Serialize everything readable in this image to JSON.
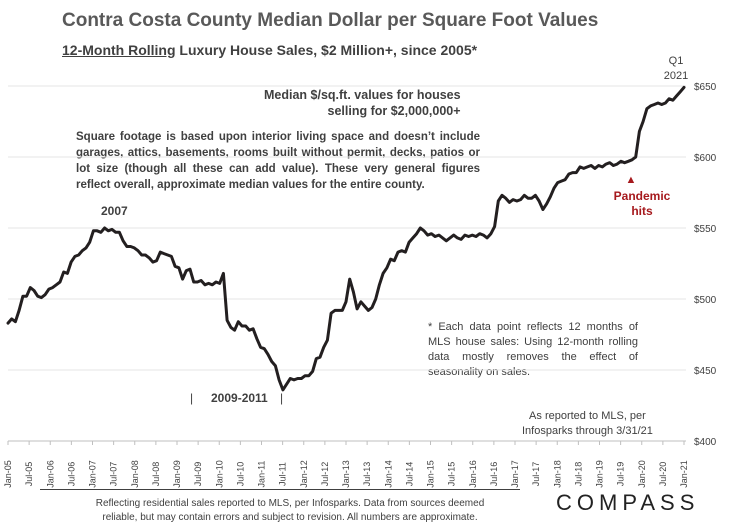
{
  "header": {
    "title": "Contra Costa County Median Dollar per Square Foot Values",
    "subtitle_underlined": "12-Month Rolling",
    "subtitle_rest": " Luxury House Sales, $2 Million+, since 2005*"
  },
  "chart_data": {
    "type": "line",
    "title": "Contra Costa County Median Dollar per Square Foot Values",
    "series_name": "Median $/sq.ft. values for houses selling for $2,000,000+",
    "ylim": [
      400,
      650
    ],
    "y_ticks": [
      400,
      450,
      500,
      550,
      600,
      650
    ],
    "y_tick_labels": [
      "$400",
      "$450",
      "$500",
      "$550",
      "$600",
      "$650"
    ],
    "x_labels": [
      "Jan-05",
      "Jul-05",
      "Jan-06",
      "Jul-06",
      "Jan-07",
      "Jul-07",
      "Jan-08",
      "Jul-08",
      "Jan-09",
      "Jul-09",
      "Jan-10",
      "Jul-10",
      "Jan-11",
      "Jul-11",
      "Jan-12",
      "Jul-12",
      "Jan-13",
      "Jul-13",
      "Jan-14",
      "Jul-14",
      "Jan-15",
      "Jul-15",
      "Jan-16",
      "Jul-16",
      "Jan-17",
      "Jul-17",
      "Jan-18",
      "Jul-18",
      "Jan-19",
      "Jul-19",
      "Jan-20",
      "Jul-20",
      "Jan-21"
    ],
    "values": [
      483,
      486,
      484,
      492,
      502,
      502,
      508,
      506,
      502,
      501,
      503,
      507,
      508,
      510,
      512,
      519,
      518,
      526,
      530,
      531,
      534,
      536,
      540,
      548,
      548,
      547,
      550,
      548,
      549,
      547,
      547,
      541,
      537,
      537,
      536,
      534,
      531,
      531,
      529,
      526,
      527,
      533,
      532,
      531,
      530,
      523,
      522,
      514,
      520,
      521,
      512,
      512,
      513,
      510,
      511,
      510,
      512,
      511,
      518,
      485,
      480,
      478,
      484,
      481,
      481,
      478,
      479,
      472,
      466,
      465,
      461,
      456,
      453,
      443,
      436,
      440,
      444,
      443,
      444,
      444,
      446,
      446,
      449,
      458,
      459,
      466,
      471,
      490,
      492,
      492,
      492,
      498,
      514,
      505,
      493,
      498,
      495,
      492,
      494,
      500,
      510,
      518,
      522,
      528,
      527,
      533,
      534,
      533,
      540,
      543,
      546,
      550,
      548,
      545,
      546,
      544,
      545,
      543,
      541,
      543,
      545,
      543,
      542,
      545,
      544,
      545,
      544,
      546,
      545,
      543,
      546,
      551,
      569,
      573,
      571,
      568,
      570,
      569,
      570,
      573,
      571,
      571,
      573,
      569,
      563,
      567,
      572,
      578,
      582,
      583,
      584,
      588,
      589,
      589,
      593,
      592,
      593,
      594,
      592,
      594,
      593,
      595,
      596,
      594,
      595,
      597,
      596,
      597,
      598,
      600,
      618,
      625,
      634,
      636,
      637,
      638,
      637,
      638,
      641,
      640,
      643,
      646,
      649
    ],
    "annotations": {
      "peak_label": "2007",
      "range_label": "2009-2011",
      "range_tick": "|",
      "pandemic_label": [
        "Pandemic",
        "hits"
      ],
      "pandemic_marker": "▲",
      "latest_label": [
        "Q1",
        "2021"
      ]
    }
  },
  "notes": {
    "series_desc": [
      "Median $/sq.ft. values for houses",
      "selling for $2,000,000+"
    ],
    "sqft_note": "Square footage is based upon interior living space and doesn’t include garages, attics, basements, rooms built without permit, decks, patios or lot size (though all these can add value). These very general figures reflect overall, approximate median values for the entire county.",
    "rolling_note": "* Each data point reflects 12 months of MLS house sales: Using 12-month rolling data mostly removes the effect of seasonality on sales.",
    "source_note": [
      "As reported to MLS, per",
      "Infosparks through 3/31/21"
    ]
  },
  "footer": {
    "disclaimer": [
      "Reflecting residential sales reported to MLS, per Infosparks. Data from sources deemed",
      "reliable, but may contain errors and subject to revision. All numbers are approximate."
    ],
    "brand": "COMPASS"
  },
  "colors": {
    "line": "#231f20",
    "pandemic": "#a6191d",
    "text": "#404040"
  }
}
